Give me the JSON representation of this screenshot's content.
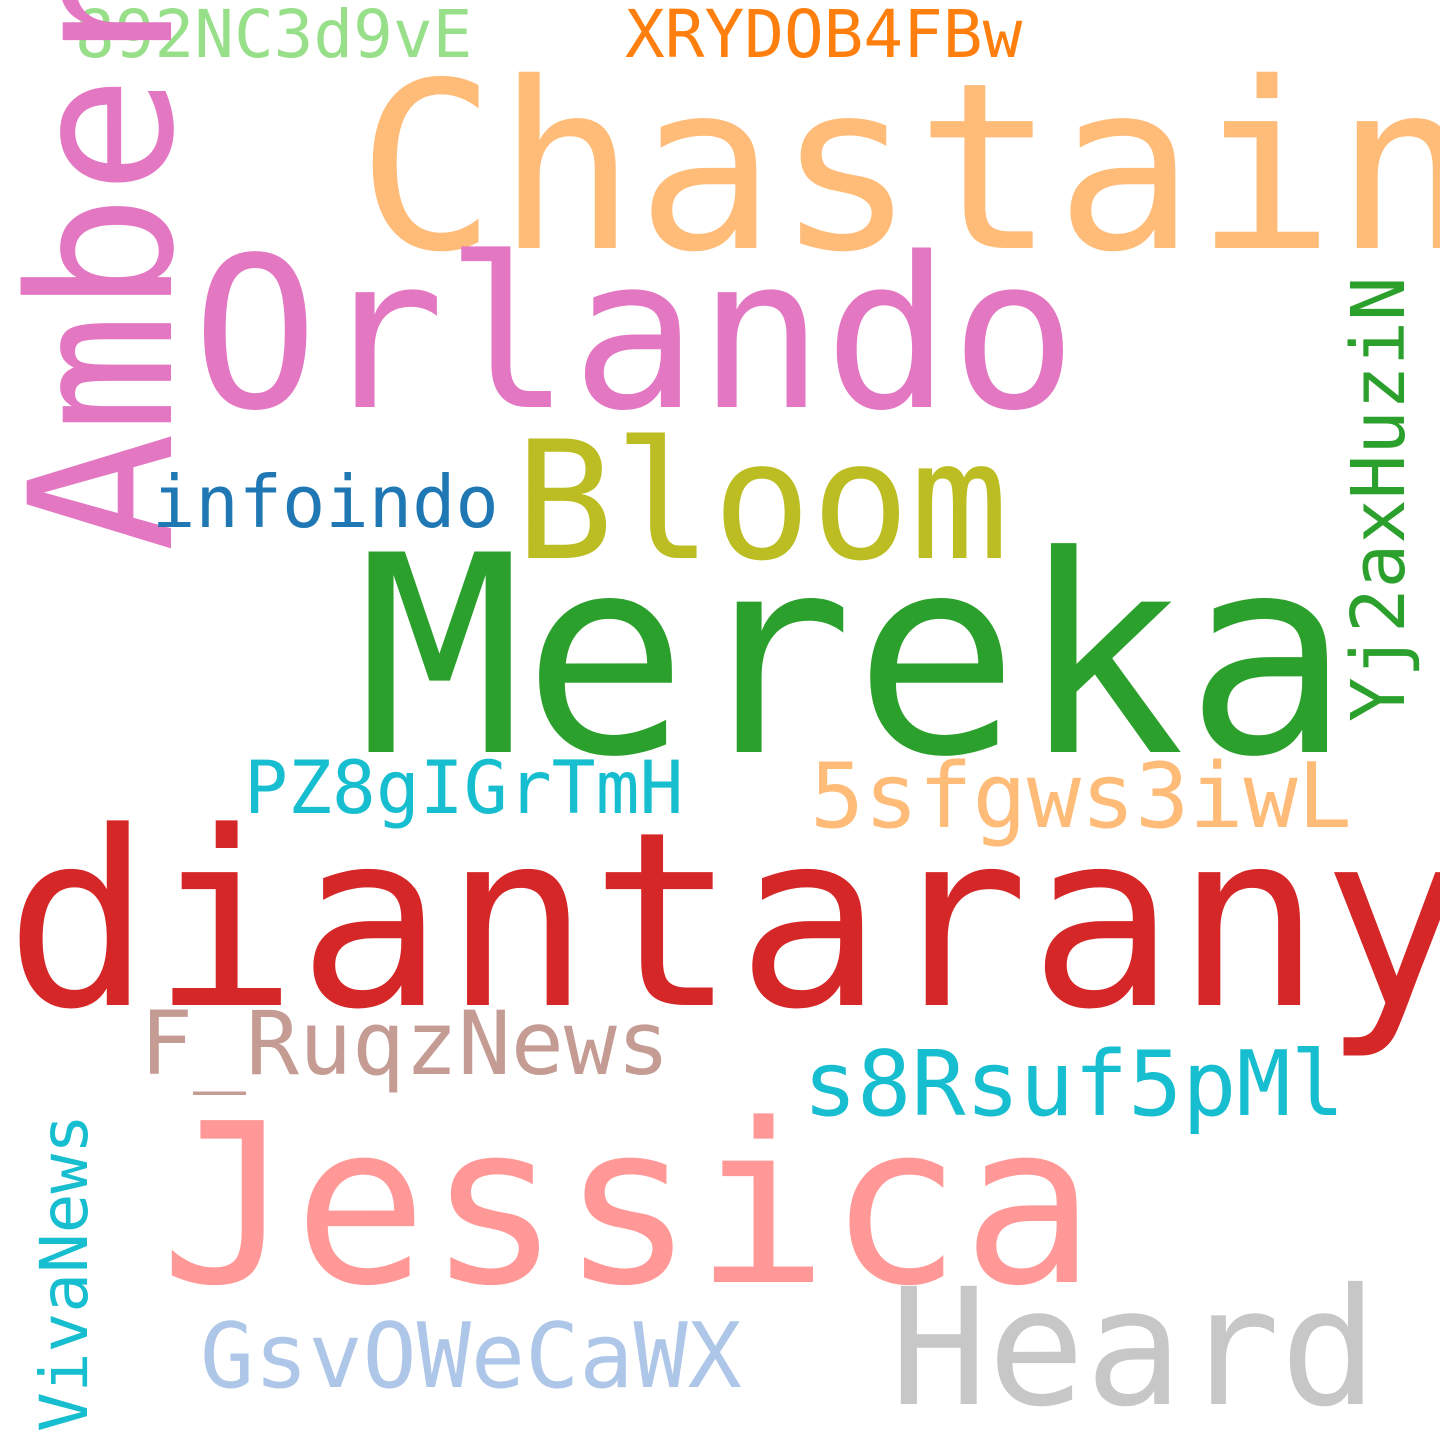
{
  "words": {
    "w892NC3d9vE": {
      "text": "892NC3d9vE",
      "color": "#98df8a"
    },
    "XRYDOB4FBw": {
      "text": "XRYDOB4FBw",
      "color": "#ff7f0e"
    },
    "Chastain": {
      "text": "Chastain",
      "color": "#ffbb78"
    },
    "Amber": {
      "text": "Amber",
      "color": "#e377c2"
    },
    "Orlando": {
      "text": "Orlando",
      "color": "#e377c2"
    },
    "Bloom": {
      "text": "Bloom",
      "color": "#bcbd22"
    },
    "infoindo": {
      "text": "infoindo",
      "color": "#1f77b4"
    },
    "Yj2axHuziN": {
      "text": "Yj2axHuziN",
      "color": "#2ca02c"
    },
    "Mereka": {
      "text": "Mereka",
      "color": "#2ca02c"
    },
    "PZ8gIGrTmH": {
      "text": "PZ8gIGrTmH",
      "color": "#17becf"
    },
    "w5sfgws3iwL": {
      "text": "5sfgws3iwL",
      "color": "#ffbb78"
    },
    "diantaranya": {
      "text": "diantaranya",
      "color": "#d62728"
    },
    "F_RuqzNews": {
      "text": "F_RuqzNews",
      "color": "#c49c94"
    },
    "s8Rsuf5pMl": {
      "text": "s8Rsuf5pMl",
      "color": "#17becf"
    },
    "Jessica": {
      "text": "Jessica",
      "color": "#ff9896"
    },
    "VivaNews": {
      "text": "VivaNews",
      "color": "#17becf"
    },
    "GsvOWeCaWX": {
      "text": "GsvOWeCaWX",
      "color": "#aec7e8"
    },
    "Heard": {
      "text": "Heard",
      "color": "#c7c7c7"
    }
  }
}
